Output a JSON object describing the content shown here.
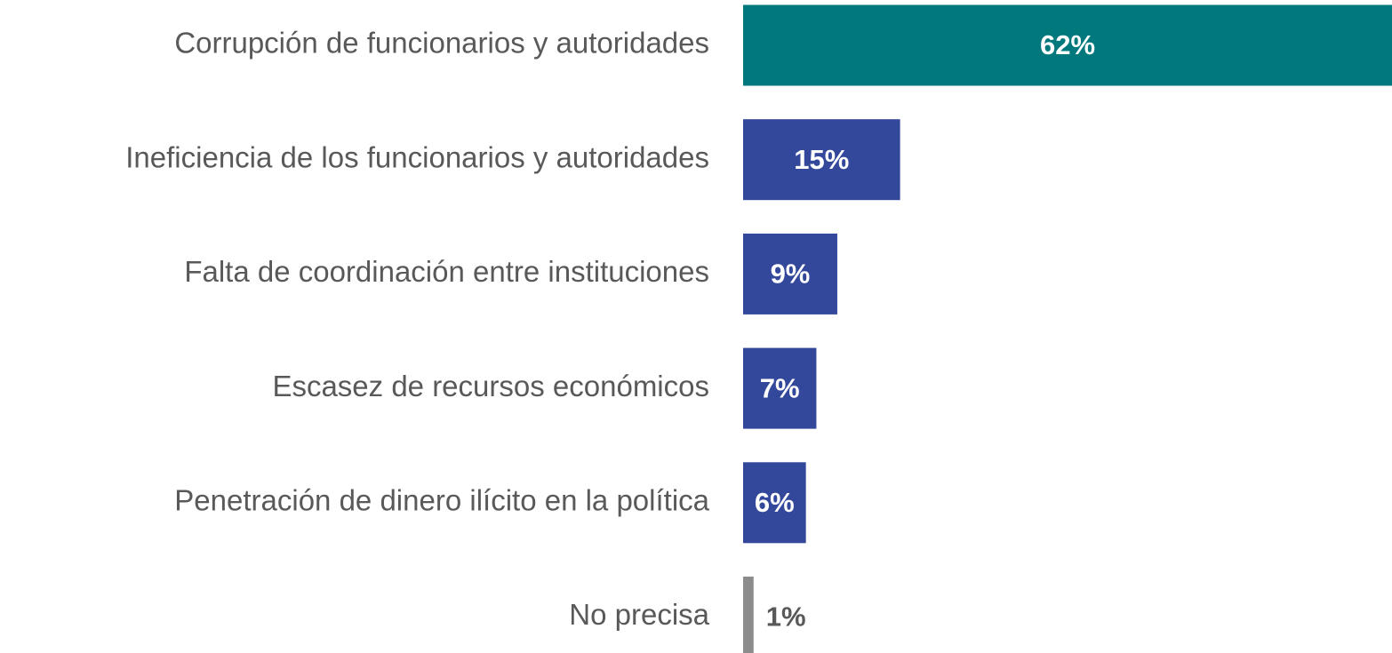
{
  "chart_data": {
    "type": "bar",
    "orientation": "horizontal",
    "categories": [
      "Corrupción de funcionarios y autoridades",
      "Ineficiencia de los funcionarios y autoridades",
      "Falta de coordinación entre instituciones",
      "Escasez de recursos económicos",
      "Penetración de dinero ilícito en la política",
      "No precisa"
    ],
    "values": [
      62,
      15,
      9,
      7,
      6,
      1
    ],
    "value_labels": [
      "62%",
      "15%",
      "9%",
      "7%",
      "6%",
      "1%"
    ],
    "colors": [
      "#00787c",
      "#33479b",
      "#33479b",
      "#33479b",
      "#33479b",
      "#8c8c8c"
    ]
  }
}
